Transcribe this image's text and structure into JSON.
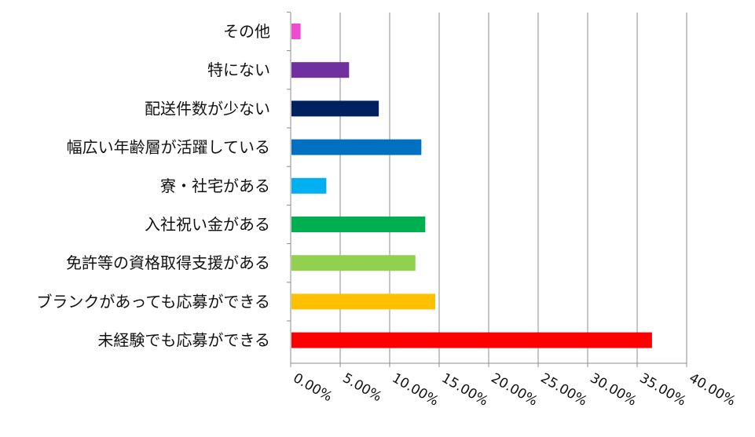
{
  "chart_data": {
    "type": "bar",
    "orientation": "horizontal",
    "categories": [
      "その他",
      "特にない",
      "配送件数が少ない",
      "幅広い年齢層が活躍している",
      "寮・社宅がある",
      "入社祝い金がある",
      "免許等の資格取得支援がある",
      "ブランクがあっても応募ができる",
      "未経験でも応募ができる"
    ],
    "values": [
      1.0,
      5.9,
      8.9,
      13.2,
      3.6,
      13.6,
      12.6,
      14.6,
      36.5
    ],
    "colors": [
      "#ee4bd0",
      "#7030a0",
      "#002060",
      "#0070c0",
      "#00b0f0",
      "#00b050",
      "#92d050",
      "#ffc000",
      "#ff0000"
    ],
    "xlim": [
      0,
      40
    ],
    "xticks": [
      0,
      5,
      10,
      15,
      20,
      25,
      30,
      35,
      40
    ],
    "xtick_labels": [
      "0.00%",
      "5.00%",
      "10.00%",
      "15.00%",
      "20.00%",
      "25.00%",
      "30.00%",
      "35.00%",
      "40.00%"
    ],
    "grid": true,
    "legend": "none",
    "title": "",
    "xlabel": "",
    "ylabel": ""
  }
}
